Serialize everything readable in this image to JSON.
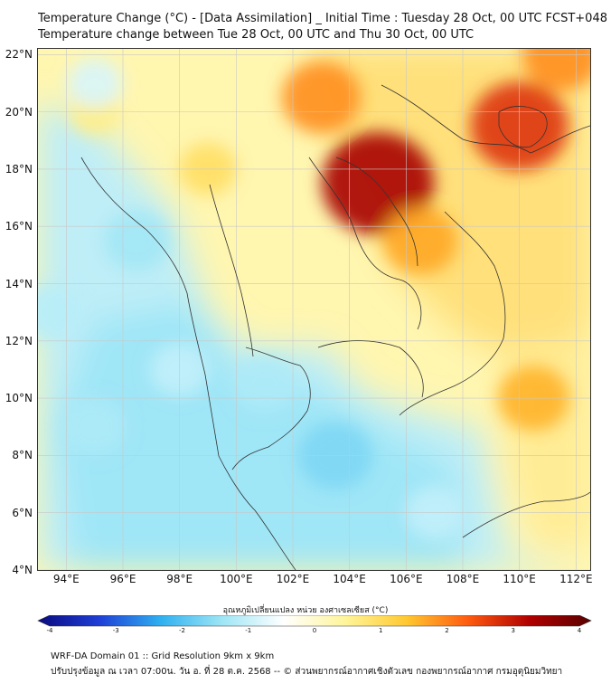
{
  "title_line1": "Temperature Change (°C) - [Data Assimilation] _ Initial Time : Tuesday 28 Oct, 00 UTC FCST+048",
  "title_line2": "Temperature change between Tue 28 Oct, 00 UTC and Thu 30 Oct, 00 UTC",
  "lat_labels": [
    "22°N",
    "20°N",
    "18°N",
    "16°N",
    "14°N",
    "12°N",
    "10°N",
    "8°N",
    "6°N",
    "4°N"
  ],
  "lon_labels": [
    "94°E",
    "96°E",
    "98°E",
    "100°E",
    "102°E",
    "104°E",
    "106°E",
    "108°E",
    "110°E",
    "112°E"
  ],
  "colorbar": {
    "title": "อุณหภูมิเปลี่ยนแปลง หน่วย องศาเซลเซียส (°C)",
    "ticks": [
      "-4",
      "-3",
      "-2",
      "-1",
      "0",
      "1",
      "2",
      "3",
      "4"
    ],
    "range": [
      -4,
      4
    ],
    "colors": [
      "#0a0a80",
      "#1f3fd6",
      "#2fb0f0",
      "#9ee6f5",
      "#ffffff",
      "#fff59a",
      "#ffc830",
      "#ff5a10",
      "#b00000",
      "#5a0000"
    ]
  },
  "footer_line1": "WRF-DA Domain 01 :: Grid Resolution 9km x 9km",
  "footer_line2": "ปรับปรุงข้อมูล ณ เวลา 07:00น. วัน อ. ที่ 28 ต.ค. 2568 -- © ส่วนพยากรณ์อากาศเชิงตัวเลข กองพยากรณ์อากาศ กรมอุตุนิยมวิทยา",
  "map": {
    "lon_range": [
      93,
      112.5
    ],
    "lat_range": [
      4,
      22.2
    ],
    "hot_spots": [
      {
        "lon": 105,
        "lat": 17.5,
        "value": 3.2
      },
      {
        "lon": 110,
        "lat": 19.5,
        "value": 2.6
      },
      {
        "lon": 103,
        "lat": 20.5,
        "value": 1.8
      },
      {
        "lon": 106.5,
        "lat": 15.5,
        "value": 1.6
      },
      {
        "lon": 110.5,
        "lat": 10,
        "value": 1.5
      },
      {
        "lon": 99,
        "lat": 18,
        "value": 0.9
      },
      {
        "lon": 111.5,
        "lat": 22,
        "value": 1.8
      },
      {
        "lon": 95,
        "lat": 20,
        "value": 0.6
      }
    ],
    "cold_spots": [
      {
        "lon": 103.5,
        "lat": 8,
        "value": -1.6
      },
      {
        "lon": 96.5,
        "lat": 15.5,
        "value": -1.3
      },
      {
        "lon": 95,
        "lat": 9,
        "value": -1.2
      },
      {
        "lon": 101,
        "lat": 10.5,
        "value": -1.2
      },
      {
        "lon": 93.5,
        "lat": 13,
        "value": -1.1
      },
      {
        "lon": 98,
        "lat": 11,
        "value": -1.0
      },
      {
        "lon": 107,
        "lat": 6,
        "value": -1.0
      },
      {
        "lon": 95,
        "lat": 21,
        "value": -0.8
      }
    ]
  }
}
